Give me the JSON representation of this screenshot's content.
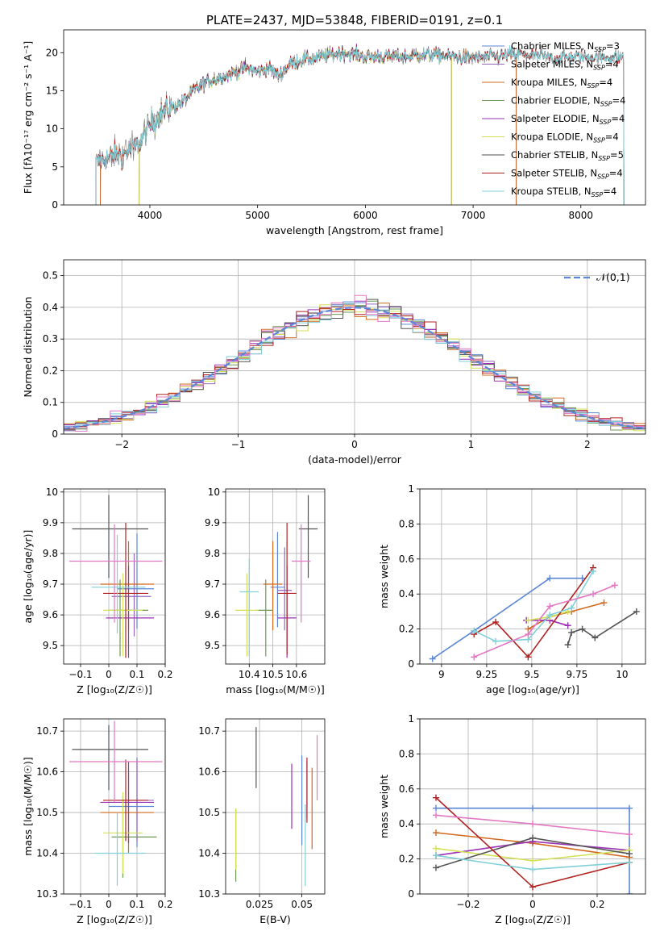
{
  "title": "PLATE=2437, MJD=53848, FIBERID=0191, z=0.1",
  "colors": {
    "Chabrier MILES": "#5b86d6",
    "Salpeter MILES": "#9467bd",
    "Kroupa MILES": "#d2691e",
    "Chabrier ELODIE": "#6a9955",
    "Salpeter ELODIE": "#9b30b6",
    "Kroupa ELODIE": "#d4e157",
    "Chabrier STELIB": "#555555",
    "Salpeter STELIB": "#b22222",
    "Kroupa STELIB": "#80d0d8"
  },
  "chart_data": [
    {
      "id": "spectrum",
      "type": "line",
      "xlabel": "wavelength [Angstrom, rest frame]",
      "ylabel": "Flux [fλ10⁻¹⁷ erg cm⁻² s⁻¹ A⁻¹]",
      "xlim": [
        3200,
        8600
      ],
      "ylim": [
        0,
        23
      ],
      "xticks": [
        4000,
        5000,
        6000,
        7000,
        8000
      ],
      "yticks": [
        0,
        5,
        10,
        15,
        20
      ],
      "grid": false,
      "legend_position": "right",
      "legend": [
        "Chabrier MILES, N_SSP=3",
        "Salpeter MILES, N_SSP=4",
        "Kroupa MILES, N_SSP=4",
        "Chabrier ELODIE, N_SSP=4",
        "Salpeter ELODIE, N_SSP=4",
        "Kroupa ELODIE, N_SSP=4",
        "Chabrier STELIB, N_SSP=5",
        "Salpeter STELIB, N_SSP=4",
        "Kroupa STELIB, N_SSP=4"
      ],
      "continuum": {
        "wavelength": [
          3500,
          3600,
          3700,
          3800,
          3900,
          4000,
          4100,
          4200,
          4300,
          4400,
          4500,
          4600,
          4700,
          4800,
          4900,
          5000,
          5100,
          5200,
          5300,
          5400,
          5600,
          5800,
          6000,
          6200,
          6400,
          6600,
          6800,
          7000,
          7200,
          7400,
          7600,
          7800,
          8000,
          8200,
          8400
        ],
        "flux": [
          5.5,
          6.2,
          6.5,
          7.0,
          8.0,
          10.5,
          12.0,
          12.8,
          13.5,
          15.0,
          16.0,
          16.5,
          17.0,
          17.5,
          18.0,
          17.5,
          18.0,
          17.0,
          18.5,
          19.0,
          19.5,
          20.0,
          19.5,
          19.5,
          19.5,
          19.8,
          19.5,
          19.3,
          19.5,
          19.8,
          19.6,
          19.3,
          19.5,
          19.3,
          19.5
        ]
      },
      "model_ranges": {
        "Chabrier MILES": [
          3540,
          7400
        ],
        "Salpeter MILES": [
          3540,
          7400
        ],
        "Kroupa MILES": [
          3540,
          7400
        ],
        "Chabrier ELODIE": [
          3900,
          6800
        ],
        "Salpeter ELODIE": [
          3900,
          6800
        ],
        "Kroupa ELODIE": [
          3900,
          6800
        ],
        "Chabrier STELIB": [
          3500,
          8400
        ],
        "Salpeter STELIB": [
          3500,
          8400
        ],
        "Kroupa STELIB": [
          3500,
          8400
        ]
      }
    },
    {
      "id": "residual-histogram",
      "type": "line",
      "xlabel": "(data-model)/error",
      "ylabel": "Normed distribution",
      "xlim": [
        -2.5,
        2.5
      ],
      "ylim": [
        0,
        0.55
      ],
      "xticks": [
        -2,
        -1,
        0,
        1,
        2
      ],
      "yticks": [
        0.0,
        0.1,
        0.2,
        0.3,
        0.4,
        0.5
      ],
      "grid": true,
      "legend_position": "upper right",
      "legend": [
        "𝒩(0,1)"
      ],
      "reference_curve": "N(0,1)",
      "bin_width": 0.1
    },
    {
      "id": "age-vs-Z",
      "type": "scatter",
      "xlabel": "Z [log₁₀(Z/Z☉)]",
      "ylabel": "age  [log₁₀(age/yr)]",
      "xlim": [
        -0.16,
        0.2
      ],
      "ylim": [
        9.44,
        10.01
      ],
      "xticks": [
        -0.1,
        0.0,
        0.1,
        0.2
      ],
      "yticks": [
        9.5,
        9.6,
        9.7,
        9.8,
        9.9,
        10.0
      ],
      "grid": true,
      "points": [
        {
          "model": "Chabrier MILES",
          "x": 0.1,
          "xerr": [
            0.07,
            0.06
          ],
          "y": 9.685,
          "yerr": [
            0.13,
            0.18
          ]
        },
        {
          "model": "Salpeter MILES",
          "x": 0.09,
          "xerr": [
            0.08,
            0.06
          ],
          "y": 9.66,
          "yerr": [
            0.13,
            0.14
          ]
        },
        {
          "model": "Kroupa MILES",
          "x": 0.07,
          "xerr": [
            0.1,
            0.09
          ],
          "y": 9.7,
          "yerr": [
            0.15,
            0.14
          ]
        },
        {
          "model": "Chabrier ELODIE",
          "x": 0.04,
          "xerr": [
            0.04,
            0.1
          ],
          "y": 9.615,
          "yerr": [
            0.15,
            0.1
          ]
        },
        {
          "model": "Salpeter ELODIE",
          "x": 0.07,
          "xerr": [
            0.08,
            0.09
          ],
          "y": 9.59,
          "yerr": [
            0.13,
            0.17
          ]
        },
        {
          "model": "Kroupa ELODIE",
          "x": 0.05,
          "xerr": [
            0.07,
            0.07
          ],
          "y": 9.615,
          "yerr": [
            0.15,
            0.12
          ]
        },
        {
          "model": "Chabrier STELIB",
          "x": 0.0,
          "xerr": [
            0.13,
            0.14
          ],
          "y": 9.88,
          "yerr": [
            0.16,
            0.11
          ]
        },
        {
          "model": "Salpeter STELIB",
          "x": 0.06,
          "xerr": [
            0.08,
            0.08
          ],
          "y": 9.67,
          "yerr": [
            0.21,
            0.23
          ]
        },
        {
          "model": "Kroupa STELIB",
          "x": 0.03,
          "xerr": [
            0.09,
            0.1
          ],
          "y": 9.69,
          "yerr": [
            0.15,
            0.17
          ]
        },
        {
          "model": "Pink",
          "x": 0.02,
          "xerr": [
            0.16,
            0.17
          ],
          "y": 9.775,
          "yerr": [
            0.2,
            0.12
          ]
        }
      ]
    },
    {
      "id": "age-vs-mass",
      "type": "scatter",
      "xlabel": "mass [log₁₀(M/M☉)]",
      "ylabel": "",
      "xlim": [
        10.3,
        10.72
      ],
      "ylim": [
        9.44,
        10.01
      ],
      "xticks": [
        10.4,
        10.5,
        10.6
      ],
      "yticks": [
        9.5,
        9.6,
        9.7,
        9.8,
        9.9,
        10.0
      ],
      "grid": true,
      "points": [
        {
          "model": "Chabrier MILES",
          "x": 10.52,
          "xerr": [
            0.03,
            0.03
          ],
          "y": 9.69,
          "yerr": [
            0.13,
            0.18
          ]
        },
        {
          "model": "Salpeter MILES",
          "x": 10.55,
          "xerr": [
            0.03,
            0.03
          ],
          "y": 9.68,
          "yerr": [
            0.13,
            0.14
          ]
        },
        {
          "model": "Kroupa MILES",
          "x": 10.5,
          "xerr": [
            0.04,
            0.04
          ],
          "y": 9.7,
          "yerr": [
            0.15,
            0.14
          ]
        },
        {
          "model": "Chabrier ELODIE",
          "x": 10.47,
          "xerr": [
            0.04,
            0.03
          ],
          "y": 9.615,
          "yerr": [
            0.15,
            0.1
          ]
        },
        {
          "model": "Salpeter ELODIE",
          "x": 10.56,
          "xerr": [
            0.04,
            0.04
          ],
          "y": 9.59,
          "yerr": [
            0.13,
            0.17
          ]
        },
        {
          "model": "Kroupa ELODIE",
          "x": 10.39,
          "xerr": [
            0.05,
            0.05
          ],
          "y": 9.615,
          "yerr": [
            0.15,
            0.12
          ]
        },
        {
          "model": "Chabrier STELIB",
          "x": 10.65,
          "xerr": [
            0.04,
            0.04
          ],
          "y": 9.88,
          "yerr": [
            0.16,
            0.11
          ]
        },
        {
          "model": "Salpeter STELIB",
          "x": 10.56,
          "xerr": [
            0.04,
            0.04
          ],
          "y": 9.67,
          "yerr": [
            0.2,
            0.23
          ]
        },
        {
          "model": "Kroupa STELIB",
          "x": 10.4,
          "xerr": [
            0.04,
            0.04
          ],
          "y": 9.675,
          "yerr": [
            0.21,
            0.11
          ]
        },
        {
          "model": "Pink",
          "x": 10.62,
          "xerr": [
            0.04,
            0.04
          ],
          "y": 9.775,
          "yerr": [
            0.2,
            0.12
          ]
        }
      ]
    },
    {
      "id": "weights-vs-age",
      "type": "line",
      "xlabel": "age  [log₁₀(age/yr)]",
      "ylabel": "mass weight",
      "xlim": [
        8.88,
        10.13
      ],
      "ylim": [
        0,
        1.0
      ],
      "xticks": [
        9.0,
        9.25,
        9.5,
        9.75,
        10.0
      ],
      "yticks": [
        0.0,
        0.2,
        0.4,
        0.6,
        0.8,
        1.0
      ],
      "grid": true,
      "series": [
        {
          "model": "Chabrier MILES",
          "x": [
            8.95,
            9.18,
            9.6,
            9.78
          ],
          "y": [
            0.03,
            0.19,
            0.49,
            0.49
          ]
        },
        {
          "model": "Kroupa MILES",
          "x": [
            9.48,
            9.6,
            9.72,
            9.9
          ],
          "y": [
            0.2,
            0.27,
            0.3,
            0.35
          ]
        },
        {
          "model": "Salpeter ELODIE",
          "x": [
            9.47,
            9.6,
            9.7
          ],
          "y": [
            0.25,
            0.25,
            0.22
          ]
        },
        {
          "model": "Kroupa ELODIE",
          "x": [
            9.48,
            9.6,
            9.7
          ],
          "y": [
            0.25,
            0.27,
            0.3
          ]
        },
        {
          "model": "Chabrier STELIB",
          "x": [
            9.7,
            9.72,
            9.78,
            9.85,
            10.08
          ],
          "y": [
            0.11,
            0.18,
            0.2,
            0.15,
            0.3
          ]
        },
        {
          "model": "Salpeter STELIB",
          "x": [
            9.18,
            9.3,
            9.48,
            9.84
          ],
          "y": [
            0.17,
            0.24,
            0.04,
            0.55
          ]
        },
        {
          "model": "Kroupa STELIB",
          "x": [
            9.18,
            9.3,
            9.48,
            9.6,
            9.72,
            9.84
          ],
          "y": [
            0.19,
            0.13,
            0.14,
            0.28,
            0.32,
            0.53
          ]
        },
        {
          "model": "Pink",
          "x": [
            9.18,
            9.48,
            9.6,
            9.84,
            9.96
          ],
          "y": [
            0.04,
            0.17,
            0.33,
            0.4,
            0.45
          ]
        }
      ]
    },
    {
      "id": "mass-vs-Z",
      "type": "scatter",
      "xlabel": "Z [log₁₀(Z/Z☉)]",
      "ylabel": "mass [log₁₀(M/M☉)]",
      "xlim": [
        -0.16,
        0.2
      ],
      "ylim": [
        10.3,
        10.73
      ],
      "xticks": [
        -0.1,
        0.0,
        0.1,
        0.2
      ],
      "yticks": [
        10.3,
        10.4,
        10.5,
        10.6,
        10.7
      ],
      "grid": true,
      "points": [
        {
          "model": "Chabrier MILES",
          "x": 0.1,
          "xerr": [
            0.1,
            0.06
          ],
          "y": 10.515,
          "yerr": [
            0.1,
            0.12
          ]
        },
        {
          "model": "Salpeter MILES",
          "x": 0.1,
          "xerr": [
            0.08,
            0.06
          ],
          "y": 10.53,
          "yerr": [
            0.1,
            0.1
          ]
        },
        {
          "model": "Kroupa MILES",
          "x": 0.07,
          "xerr": [
            0.1,
            0.09
          ],
          "y": 10.5,
          "yerr": [
            0.1,
            0.1
          ]
        },
        {
          "model": "Chabrier ELODIE",
          "x": 0.05,
          "xerr": [
            0.04,
            0.12
          ],
          "y": 10.44,
          "yerr": [
            0.1,
            0.1
          ]
        },
        {
          "model": "Salpeter ELODIE",
          "x": 0.07,
          "xerr": [
            0.1,
            0.09
          ],
          "y": 10.525,
          "yerr": [
            0.1,
            0.1
          ]
        },
        {
          "model": "Kroupa ELODIE",
          "x": 0.05,
          "xerr": [
            0.07,
            0.07
          ],
          "y": 10.45,
          "yerr": [
            0.1,
            0.1
          ]
        },
        {
          "model": "Chabrier STELIB",
          "x": 0.0,
          "xerr": [
            0.13,
            0.14
          ],
          "y": 10.655,
          "yerr": [
            0.1,
            0.06
          ]
        },
        {
          "model": "Salpeter STELIB",
          "x": 0.06,
          "xerr": [
            0.08,
            0.08
          ],
          "y": 10.53,
          "yerr": [
            0.1,
            0.1
          ]
        },
        {
          "model": "Kroupa STELIB",
          "x": 0.03,
          "xerr": [
            0.08,
            0.1
          ],
          "y": 10.4,
          "yerr": [
            0.08,
            0.1
          ]
        },
        {
          "model": "Pink",
          "x": 0.02,
          "xerr": [
            0.16,
            0.17
          ],
          "y": 10.625,
          "yerr": [
            0.1,
            0.1
          ]
        }
      ]
    },
    {
      "id": "mass-vs-ebv",
      "type": "scatter",
      "xlabel": "E(B-V)",
      "ylabel": "",
      "xlim": [
        0.005,
        0.0635
      ],
      "ylim": [
        10.3,
        10.73
      ],
      "xticks": [
        0.025,
        0.05
      ],
      "yticks": [
        10.3,
        10.4,
        10.5,
        10.6,
        10.7
      ],
      "grid": true,
      "points": [
        {
          "model": "Chabrier MILES",
          "x": 0.05,
          "y": 10.52,
          "yerr": [
            0.1,
            0.12
          ]
        },
        {
          "model": "Salpeter MILES",
          "x": 0.053,
          "y": 10.535,
          "yerr": [
            0.05,
            0.09
          ]
        },
        {
          "model": "Kroupa MILES",
          "x": 0.056,
          "y": 10.51,
          "yerr": [
            0.1,
            0.1
          ]
        },
        {
          "model": "Chabrier ELODIE",
          "x": 0.011,
          "y": 10.42,
          "yerr": [
            0.09,
            0.09
          ]
        },
        {
          "model": "Salpeter ELODIE",
          "x": 0.044,
          "y": 10.54,
          "yerr": [
            0.08,
            0.08
          ]
        },
        {
          "model": "Kroupa ELODIE",
          "x": 0.011,
          "y": 10.44,
          "yerr": [
            0.08,
            0.07
          ]
        },
        {
          "model": "Chabrier STELIB",
          "x": 0.023,
          "y": 10.64,
          "yerr": [
            0.08,
            0.07
          ]
        },
        {
          "model": "Salpeter STELIB",
          "x": 0.053,
          "y": 10.555,
          "yerr": [
            0.08,
            0.08
          ]
        },
        {
          "model": "Kroupa STELIB",
          "x": 0.052,
          "y": 10.42,
          "yerr": [
            0.1,
            0.1
          ]
        },
        {
          "model": "Pink",
          "x": 0.059,
          "y": 10.61,
          "yerr": [
            0.08,
            0.08
          ]
        }
      ]
    },
    {
      "id": "weights-vs-Z",
      "type": "line",
      "xlabel": "Z [log₁₀(Z/Z☉)]",
      "ylabel": "mass weight",
      "xlim": [
        -0.35,
        0.35
      ],
      "ylim": [
        0,
        1.0
      ],
      "xticks": [
        -0.2,
        0.0,
        0.2
      ],
      "yticks": [
        0.0,
        0.2,
        0.4,
        0.6,
        0.8,
        1.0
      ],
      "grid": true,
      "series": [
        {
          "model": "Chabrier MILES",
          "x": [
            -0.3,
            0.0,
            0.3,
            0.3
          ],
          "y": [
            0.49,
            0.49,
            0.49,
            0.0
          ]
        },
        {
          "model": "Kroupa MILES",
          "x": [
            -0.3,
            0.0,
            0.3
          ],
          "y": [
            0.35,
            0.29,
            0.21
          ]
        },
        {
          "model": "Salpeter ELODIE",
          "x": [
            -0.3,
            0.0,
            0.3
          ],
          "y": [
            0.22,
            0.3,
            0.25
          ]
        },
        {
          "model": "Kroupa ELODIE",
          "x": [
            -0.3,
            0.0,
            0.3
          ],
          "y": [
            0.26,
            0.19,
            0.25
          ]
        },
        {
          "model": "Chabrier STELIB",
          "x": [
            -0.3,
            0.0,
            0.3
          ],
          "y": [
            0.15,
            0.32,
            0.23
          ]
        },
        {
          "model": "Salpeter STELIB",
          "x": [
            -0.3,
            0.0,
            0.3
          ],
          "y": [
            0.55,
            0.04,
            0.18
          ]
        },
        {
          "model": "Kroupa STELIB",
          "x": [
            -0.3,
            0.0,
            0.3
          ],
          "y": [
            0.22,
            0.14,
            0.18
          ]
        },
        {
          "model": "Pink",
          "x": [
            -0.3,
            0.0,
            0.3
          ],
          "y": [
            0.45,
            0.4,
            0.34
          ]
        }
      ]
    }
  ]
}
